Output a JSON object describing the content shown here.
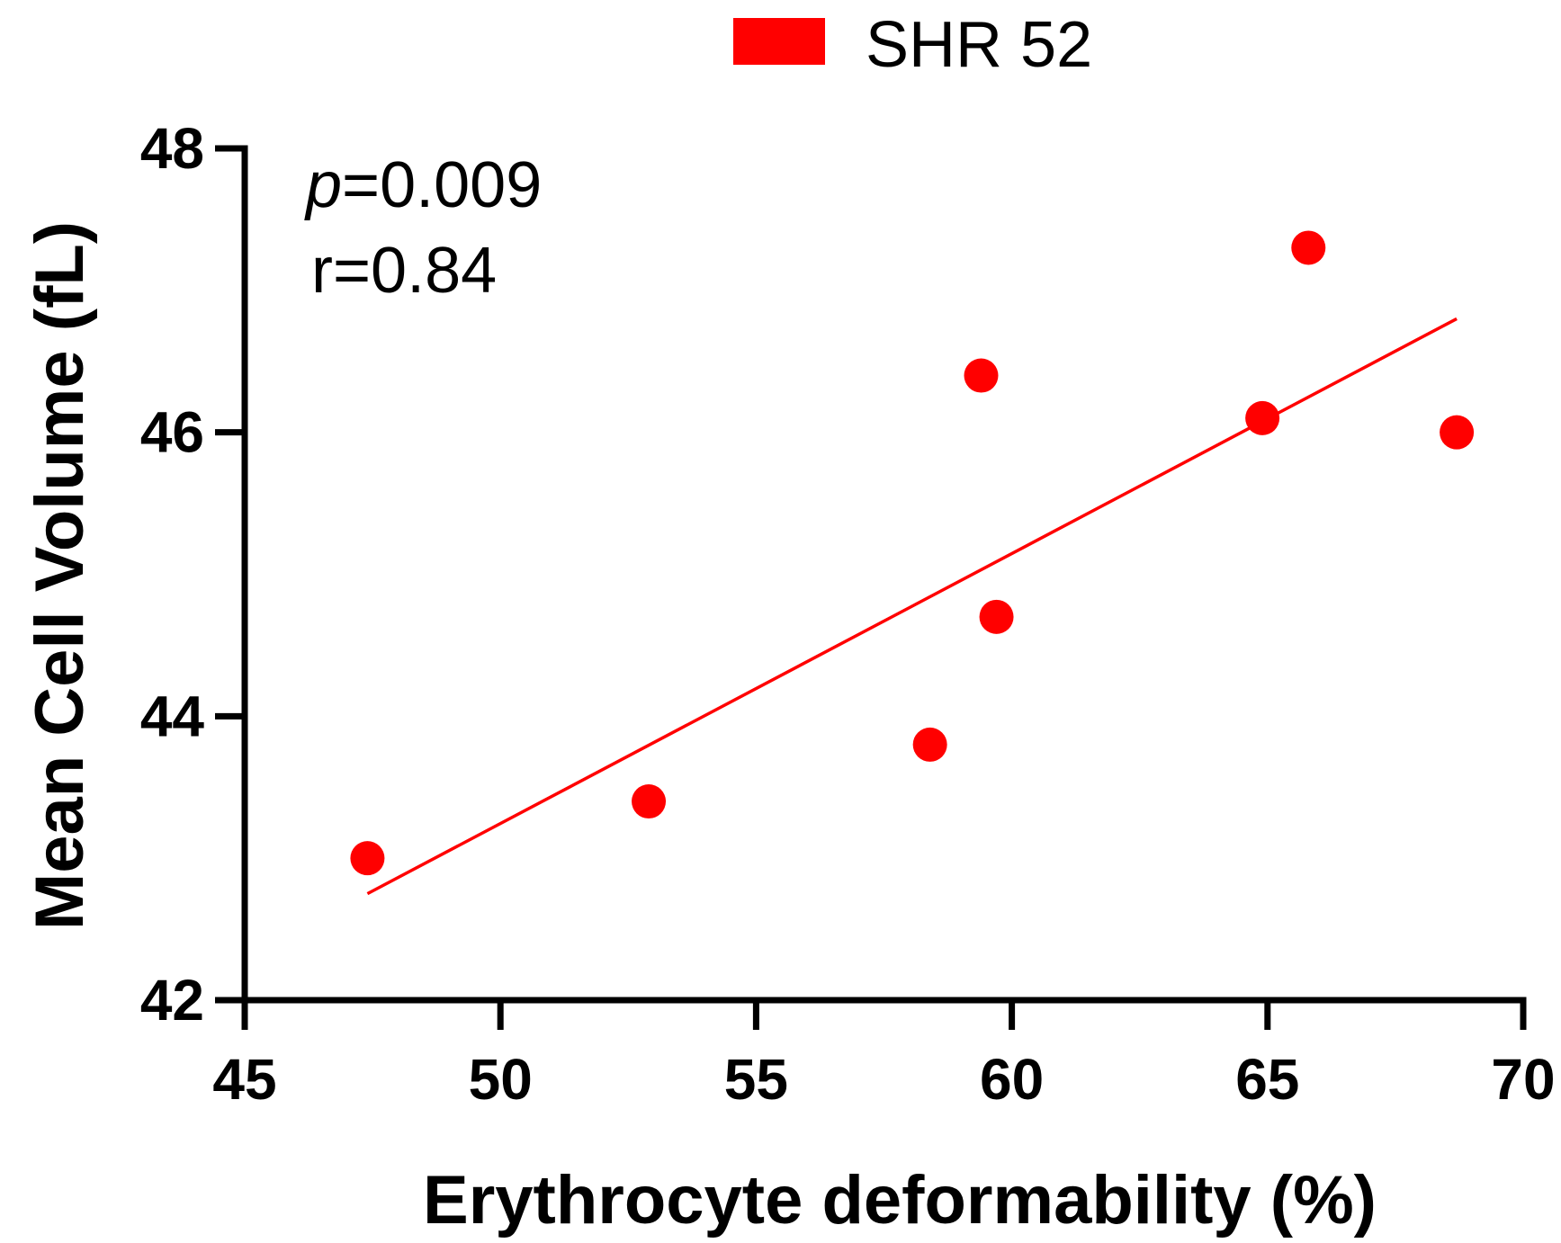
{
  "chart_data": {
    "type": "scatter",
    "title": "",
    "xlabel": "Erythrocyte deformability (%)",
    "ylabel": "Mean Cell Volume (fL)",
    "xlim": [
      45,
      70
    ],
    "ylim": [
      42,
      48
    ],
    "xticks": [
      45,
      50,
      55,
      60,
      65,
      70
    ],
    "yticks": [
      42,
      44,
      46,
      48
    ],
    "legend": {
      "label": "SHR 52",
      "color": "#ff0000",
      "position": "top-center"
    },
    "annotations": {
      "p_symbol": "p",
      "p_value": "=0.009",
      "r_text": "r=0.84"
    },
    "series": [
      {
        "name": "SHR 52",
        "color": "#ff0000",
        "points": [
          {
            "x": 47.4,
            "y": 43.0
          },
          {
            "x": 52.9,
            "y": 43.4
          },
          {
            "x": 58.4,
            "y": 43.8
          },
          {
            "x": 59.4,
            "y": 46.4
          },
          {
            "x": 59.7,
            "y": 44.7
          },
          {
            "x": 64.9,
            "y": 46.1
          },
          {
            "x": 65.8,
            "y": 47.3
          },
          {
            "x": 68.7,
            "y": 46.0
          }
        ]
      }
    ],
    "regression": {
      "x_start": 47.4,
      "y_start": 42.75,
      "x_end": 68.7,
      "y_end": 46.8
    }
  }
}
